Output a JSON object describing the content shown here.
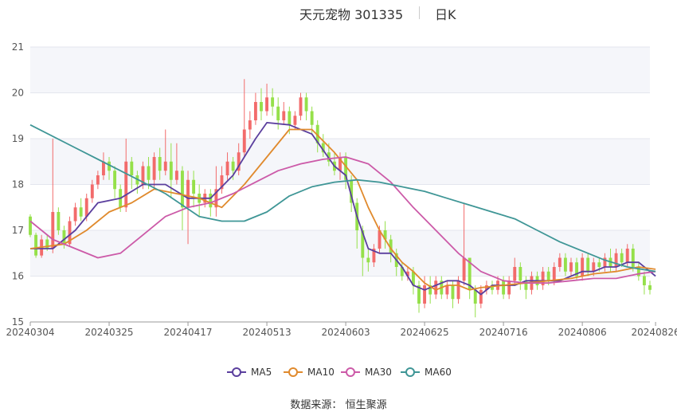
{
  "title": {
    "main": "天元宠物 301335",
    "sub": "日K"
  },
  "source": {
    "label": "数据来源：",
    "name": "恒生聚源"
  },
  "legend": [
    {
      "name": "MA5",
      "color": "#5b3f9e"
    },
    {
      "name": "MA10",
      "color": "#e08a2d"
    },
    {
      "name": "MA30",
      "color": "#cc5aa8"
    },
    {
      "name": "MA60",
      "color": "#3f9696"
    }
  ],
  "chart_data": {
    "type": "candlestick",
    "ylim": [
      15,
      21
    ],
    "yticks": [
      15,
      16,
      17,
      18,
      19,
      20,
      21
    ],
    "xtick_labels": [
      "20240304",
      "20240325",
      "20240417",
      "20240513",
      "20240603",
      "20240625",
      "20240716",
      "20240806",
      "20240826"
    ],
    "xtick_index": [
      0,
      14,
      28,
      42,
      56,
      70,
      84,
      98,
      111
    ],
    "up_color": "#f26b6b",
    "down_color": "#95e04a",
    "candles": [
      [
        17.3,
        16.9,
        17.35,
        16.85
      ],
      [
        16.9,
        16.45,
        16.95,
        16.4
      ],
      [
        16.45,
        16.8,
        16.9,
        16.4
      ],
      [
        16.8,
        16.6,
        16.9,
        16.55
      ],
      [
        16.6,
        17.4,
        19.0,
        16.5
      ],
      [
        17.4,
        17.0,
        17.5,
        16.9
      ],
      [
        17.0,
        16.7,
        17.1,
        16.6
      ],
      [
        16.7,
        17.2,
        17.3,
        16.65
      ],
      [
        17.2,
        17.5,
        17.6,
        17.1
      ],
      [
        17.5,
        17.3,
        17.7,
        17.2
      ],
      [
        17.3,
        17.7,
        17.8,
        17.2
      ],
      [
        17.7,
        18.0,
        18.1,
        17.6
      ],
      [
        18.0,
        18.2,
        18.3,
        17.9
      ],
      [
        18.2,
        18.5,
        18.7,
        18.1
      ],
      [
        18.5,
        18.3,
        18.6,
        18.1
      ],
      [
        18.3,
        17.9,
        18.4,
        17.7
      ],
      [
        17.9,
        17.5,
        18.0,
        17.4
      ],
      [
        17.5,
        18.5,
        19.0,
        17.4
      ],
      [
        18.5,
        18.2,
        18.6,
        17.9
      ],
      [
        18.2,
        18.0,
        18.3,
        17.8
      ],
      [
        18.0,
        18.4,
        18.5,
        17.9
      ],
      [
        18.4,
        18.1,
        18.6,
        17.9
      ],
      [
        18.1,
        18.6,
        18.7,
        17.9
      ],
      [
        18.6,
        18.3,
        18.8,
        18.1
      ],
      [
        18.3,
        18.5,
        19.2,
        18.2
      ],
      [
        18.5,
        18.1,
        18.9,
        17.7
      ],
      [
        18.1,
        18.3,
        18.9,
        18.0
      ],
      [
        18.3,
        17.5,
        18.4,
        17.0
      ],
      [
        17.5,
        18.1,
        18.3,
        16.7
      ],
      [
        18.1,
        17.8,
        18.3,
        17.5
      ],
      [
        17.8,
        17.6,
        18.0,
        17.3
      ],
      [
        17.6,
        17.8,
        17.9,
        17.5
      ],
      [
        17.8,
        17.5,
        17.9,
        17.3
      ],
      [
        17.5,
        17.9,
        18.4,
        17.3
      ],
      [
        17.9,
        18.2,
        18.4,
        17.8
      ],
      [
        18.2,
        18.5,
        18.7,
        18.1
      ],
      [
        18.5,
        18.3,
        18.6,
        18.1
      ],
      [
        18.3,
        18.7,
        18.9,
        18.2
      ],
      [
        18.7,
        19.2,
        20.3,
        18.6
      ],
      [
        19.2,
        19.4,
        19.6,
        19.0
      ],
      [
        19.4,
        19.8,
        20.0,
        19.3
      ],
      [
        19.8,
        19.6,
        20.1,
        19.4
      ],
      [
        19.6,
        19.9,
        20.2,
        19.5
      ],
      [
        19.9,
        19.7,
        20.1,
        19.5
      ],
      [
        19.7,
        19.4,
        19.9,
        19.2
      ],
      [
        19.4,
        19.6,
        19.8,
        19.3
      ],
      [
        19.6,
        19.3,
        19.7,
        19.1
      ],
      [
        19.3,
        19.5,
        19.6,
        19.2
      ],
      [
        19.5,
        19.9,
        20.0,
        19.4
      ],
      [
        19.9,
        19.6,
        20.0,
        19.4
      ],
      [
        19.6,
        19.3,
        19.7,
        19.1
      ],
      [
        19.3,
        18.9,
        19.4,
        18.7
      ],
      [
        18.9,
        18.7,
        19.1,
        18.6
      ],
      [
        18.7,
        18.5,
        18.9,
        18.4
      ],
      [
        18.5,
        18.3,
        18.7,
        18.2
      ],
      [
        18.3,
        18.6,
        18.7,
        18.1
      ],
      [
        18.6,
        18.1,
        18.7,
        17.9
      ],
      [
        18.1,
        17.6,
        18.2,
        17.4
      ],
      [
        17.6,
        17.0,
        17.7,
        16.6
      ],
      [
        17.0,
        16.4,
        17.1,
        16.0
      ],
      [
        16.4,
        16.3,
        16.6,
        16.1
      ],
      [
        16.3,
        16.6,
        16.7,
        16.2
      ],
      [
        16.6,
        17.0,
        17.1,
        16.5
      ],
      [
        17.0,
        16.8,
        17.2,
        16.6
      ],
      [
        16.8,
        16.5,
        16.9,
        16.3
      ],
      [
        16.5,
        16.2,
        16.6,
        16.0
      ],
      [
        16.2,
        16.0,
        16.3,
        15.9
      ],
      [
        16.0,
        16.1,
        16.2,
        15.9
      ],
      [
        16.1,
        15.8,
        16.2,
        15.6
      ],
      [
        15.8,
        15.4,
        15.9,
        15.2
      ],
      [
        15.4,
        15.8,
        16.0,
        15.3
      ],
      [
        15.8,
        15.6,
        16.0,
        15.4
      ],
      [
        15.6,
        15.9,
        16.0,
        15.5
      ],
      [
        15.9,
        15.6,
        16.0,
        15.5
      ],
      [
        15.6,
        15.8,
        15.9,
        15.5
      ],
      [
        15.8,
        15.5,
        15.9,
        15.3
      ],
      [
        15.5,
        15.9,
        16.0,
        15.4
      ],
      [
        15.9,
        16.4,
        17.6,
        15.8
      ],
      [
        16.4,
        15.7,
        16.4,
        15.5
      ],
      [
        15.7,
        15.4,
        15.8,
        15.1
      ],
      [
        15.4,
        15.7,
        15.8,
        15.3
      ],
      [
        15.7,
        15.8,
        15.9,
        15.6
      ],
      [
        15.8,
        15.7,
        15.9,
        15.6
      ],
      [
        15.7,
        15.9,
        16.0,
        15.6
      ],
      [
        15.9,
        15.6,
        16.0,
        15.5
      ],
      [
        15.6,
        15.9,
        16.0,
        15.5
      ],
      [
        15.9,
        16.2,
        16.4,
        15.8
      ],
      [
        16.2,
        15.9,
        16.3,
        15.7
      ],
      [
        15.9,
        15.7,
        16.0,
        15.5
      ],
      [
        15.7,
        16.0,
        16.1,
        15.6
      ],
      [
        16.0,
        15.8,
        16.1,
        15.7
      ],
      [
        15.8,
        16.1,
        16.2,
        15.7
      ],
      [
        16.1,
        15.9,
        16.2,
        15.8
      ],
      [
        15.9,
        16.2,
        16.3,
        15.8
      ],
      [
        16.2,
        16.4,
        16.5,
        16.1
      ],
      [
        16.4,
        16.1,
        16.5,
        16.0
      ],
      [
        16.1,
        16.3,
        16.4,
        16.0
      ],
      [
        16.3,
        16.0,
        16.4,
        15.9
      ],
      [
        16.0,
        16.4,
        16.5,
        15.9
      ],
      [
        16.4,
        16.1,
        16.5,
        16.0
      ],
      [
        16.1,
        16.3,
        16.4,
        16.0
      ],
      [
        16.3,
        16.2,
        16.4,
        16.1
      ],
      [
        16.2,
        16.4,
        16.5,
        16.1
      ],
      [
        16.4,
        16.2,
        16.6,
        16.1
      ],
      [
        16.2,
        16.5,
        16.6,
        16.1
      ],
      [
        16.5,
        16.3,
        16.6,
        16.2
      ],
      [
        16.3,
        16.6,
        16.7,
        16.2
      ],
      [
        16.6,
        16.2,
        16.7,
        16.1
      ],
      [
        16.2,
        16.0,
        16.3,
        15.9
      ],
      [
        16.0,
        15.8,
        16.1,
        15.6
      ],
      [
        15.8,
        15.7,
        15.9,
        15.6
      ]
    ],
    "ma_lines": [
      {
        "name": "MA5",
        "points": [
          [
            0,
            16.6
          ],
          [
            4,
            16.6
          ],
          [
            8,
            17.0
          ],
          [
            12,
            17.6
          ],
          [
            16,
            17.7
          ],
          [
            20,
            18.0
          ],
          [
            24,
            18.0
          ],
          [
            28,
            17.7
          ],
          [
            32,
            17.7
          ],
          [
            36,
            18.2
          ],
          [
            40,
            19.0
          ],
          [
            42,
            19.35
          ],
          [
            46,
            19.3
          ],
          [
            50,
            19.1
          ],
          [
            54,
            18.4
          ],
          [
            56,
            18.2
          ],
          [
            58,
            17.3
          ],
          [
            60,
            16.6
          ],
          [
            62,
            16.5
          ],
          [
            64,
            16.5
          ],
          [
            66,
            16.2
          ],
          [
            68,
            15.8
          ],
          [
            70,
            15.7
          ],
          [
            72,
            15.8
          ],
          [
            74,
            15.9
          ],
          [
            76,
            15.9
          ],
          [
            78,
            15.8
          ],
          [
            80,
            15.6
          ],
          [
            82,
            15.8
          ],
          [
            84,
            15.8
          ],
          [
            86,
            15.8
          ],
          [
            88,
            15.9
          ],
          [
            90,
            15.9
          ],
          [
            92,
            15.9
          ],
          [
            94,
            15.9
          ],
          [
            96,
            16.0
          ],
          [
            98,
            16.1
          ],
          [
            100,
            16.1
          ],
          [
            102,
            16.2
          ],
          [
            104,
            16.2
          ],
          [
            106,
            16.3
          ],
          [
            108,
            16.3
          ],
          [
            110,
            16.1
          ],
          [
            111,
            16.0
          ]
        ]
      },
      {
        "name": "MA10",
        "points": [
          [
            0,
            16.6
          ],
          [
            6,
            16.7
          ],
          [
            10,
            17.0
          ],
          [
            14,
            17.4
          ],
          [
            18,
            17.6
          ],
          [
            22,
            17.9
          ],
          [
            26,
            17.8
          ],
          [
            30,
            17.7
          ],
          [
            34,
            17.5
          ],
          [
            38,
            18.0
          ],
          [
            42,
            18.6
          ],
          [
            46,
            19.2
          ],
          [
            50,
            19.2
          ],
          [
            54,
            18.7
          ],
          [
            58,
            18.1
          ],
          [
            60,
            17.5
          ],
          [
            62,
            17.0
          ],
          [
            64,
            16.6
          ],
          [
            66,
            16.3
          ],
          [
            68,
            16.1
          ],
          [
            70,
            15.85
          ],
          [
            72,
            15.7
          ],
          [
            74,
            15.8
          ],
          [
            76,
            15.8
          ],
          [
            78,
            15.7
          ],
          [
            80,
            15.75
          ],
          [
            84,
            15.8
          ],
          [
            88,
            15.85
          ],
          [
            92,
            15.9
          ],
          [
            96,
            15.95
          ],
          [
            100,
            16.05
          ],
          [
            104,
            16.1
          ],
          [
            108,
            16.2
          ],
          [
            111,
            16.15
          ]
        ]
      },
      {
        "name": "MA30",
        "points": [
          [
            0,
            17.2
          ],
          [
            4,
            16.8
          ],
          [
            8,
            16.6
          ],
          [
            12,
            16.4
          ],
          [
            16,
            16.5
          ],
          [
            20,
            16.9
          ],
          [
            24,
            17.3
          ],
          [
            28,
            17.5
          ],
          [
            32,
            17.6
          ],
          [
            36,
            17.8
          ],
          [
            40,
            18.05
          ],
          [
            44,
            18.3
          ],
          [
            48,
            18.45
          ],
          [
            52,
            18.55
          ],
          [
            56,
            18.6
          ],
          [
            60,
            18.45
          ],
          [
            64,
            18.05
          ],
          [
            68,
            17.5
          ],
          [
            72,
            17.0
          ],
          [
            76,
            16.5
          ],
          [
            80,
            16.1
          ],
          [
            84,
            15.9
          ],
          [
            88,
            15.85
          ],
          [
            92,
            15.85
          ],
          [
            96,
            15.9
          ],
          [
            100,
            15.95
          ],
          [
            104,
            15.95
          ],
          [
            108,
            16.05
          ],
          [
            111,
            16.1
          ]
        ]
      },
      {
        "name": "MA60",
        "points": [
          [
            0,
            19.3
          ],
          [
            8,
            18.8
          ],
          [
            16,
            18.3
          ],
          [
            24,
            17.8
          ],
          [
            30,
            17.3
          ],
          [
            34,
            17.2
          ],
          [
            38,
            17.2
          ],
          [
            42,
            17.4
          ],
          [
            46,
            17.75
          ],
          [
            50,
            17.95
          ],
          [
            54,
            18.05
          ],
          [
            58,
            18.1
          ],
          [
            62,
            18.05
          ],
          [
            66,
            17.95
          ],
          [
            70,
            17.85
          ],
          [
            74,
            17.7
          ],
          [
            78,
            17.55
          ],
          [
            82,
            17.4
          ],
          [
            86,
            17.25
          ],
          [
            90,
            17.0
          ],
          [
            94,
            16.75
          ],
          [
            98,
            16.55
          ],
          [
            102,
            16.35
          ],
          [
            106,
            16.2
          ],
          [
            111,
            16.1
          ]
        ]
      }
    ]
  }
}
